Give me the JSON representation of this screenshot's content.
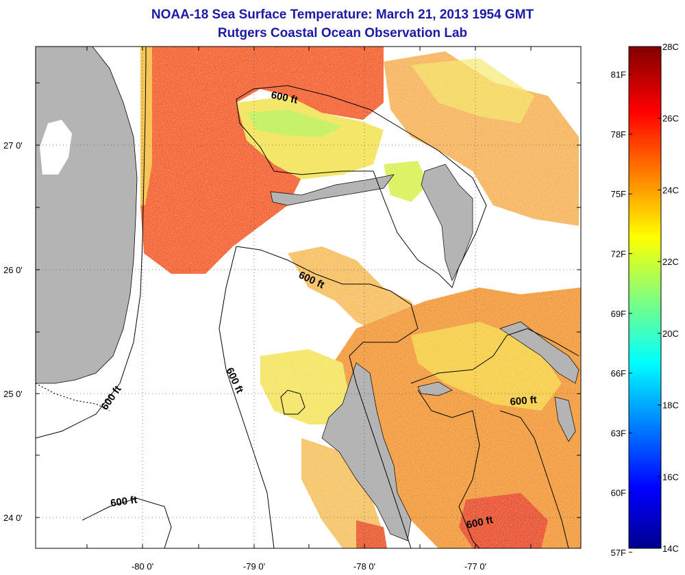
{
  "title": "NOAA-18 Sea Surface Temperature:  March 21, 2013 1954 GMT",
  "subtitle": "Rutgers Coastal Ocean Observation Lab",
  "map": {
    "lat_ticks": [
      "27 0'",
      "26 0'",
      "25 0'",
      "24 0'"
    ],
    "lon_ticks": [
      "-80 0'",
      "-79 0'",
      "-78 0'",
      "-77 0'"
    ],
    "contour_label": "600 ft"
  },
  "colorbar": {
    "fahrenheit_labels": [
      "81F",
      "78F",
      "75F",
      "72F",
      "69F",
      "66F",
      "63F",
      "60F",
      "57F"
    ],
    "celsius_labels": [
      "28C",
      "26C",
      "24C",
      "22C",
      "20C",
      "18C",
      "16C",
      "14C"
    ],
    "range_c": [
      14,
      28
    ]
  },
  "colors": {
    "land": "#b4b4b4",
    "cloud": "#ffffff",
    "warm": "#f24a12",
    "mid": "#f5a51e",
    "cool": "#f0e63c",
    "coolest": "#b8ee40",
    "title": "#1a1aa6"
  }
}
